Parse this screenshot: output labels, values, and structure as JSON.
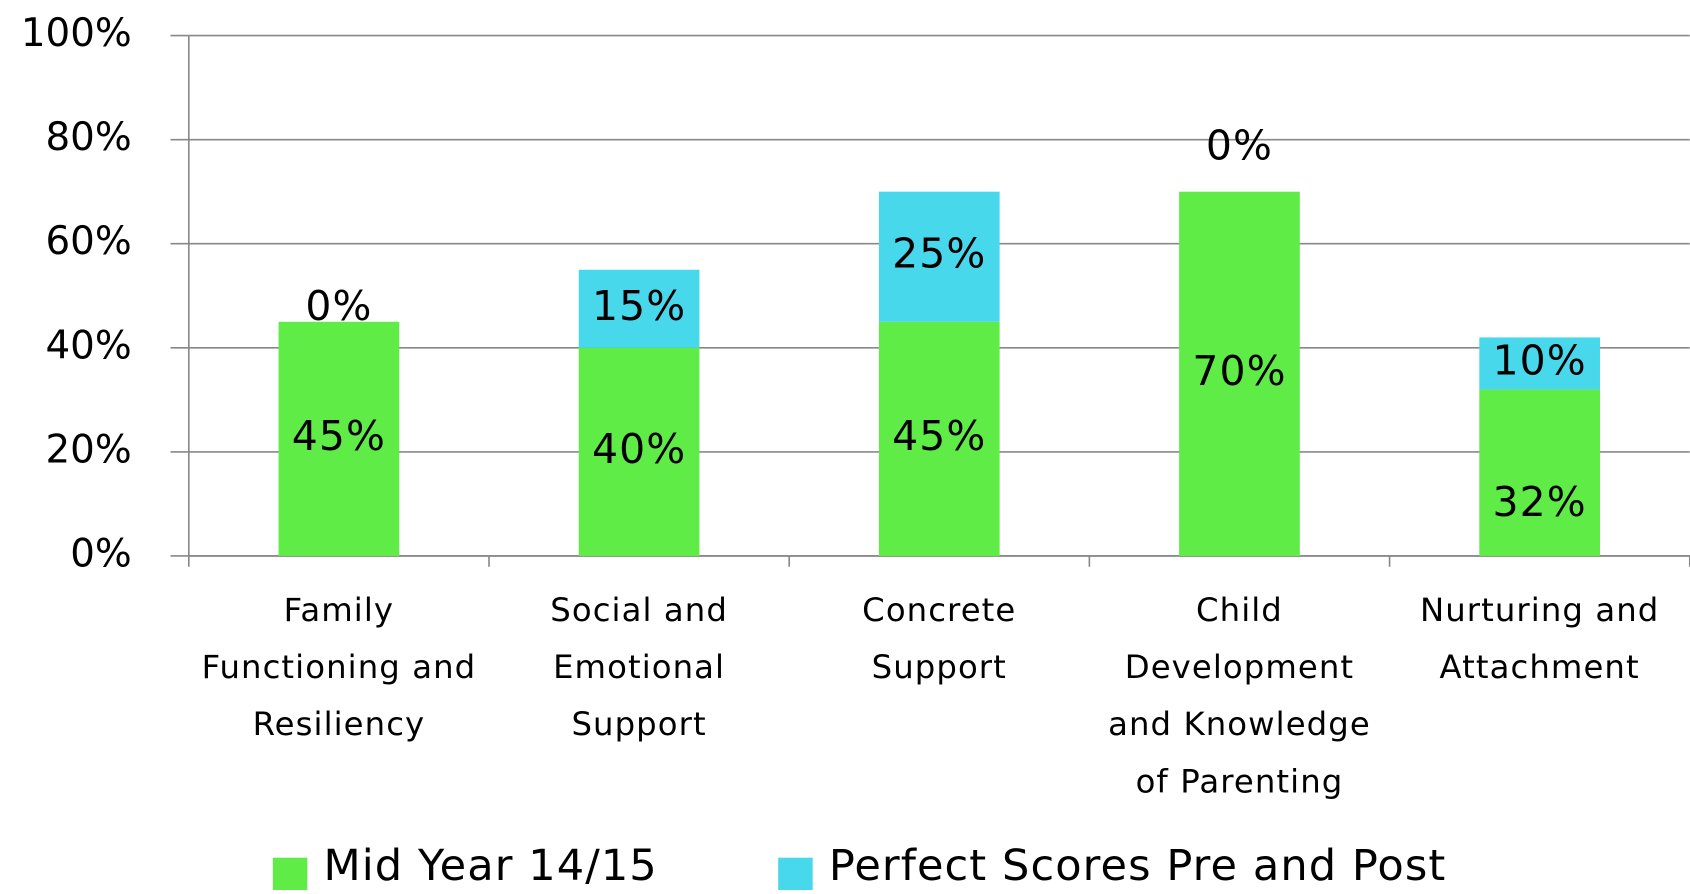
{
  "chart_data": {
    "type": "stacked_bar",
    "categories": [
      "Family Functioning and Resiliency",
      "Social and Emotional Support",
      "Concrete Support",
      "Child Development and Knowledge of Parenting",
      "Nurturing and Attachment"
    ],
    "series": [
      {
        "name": "Mid Year 14/15",
        "color": "#5fec47",
        "values": [
          45,
          40,
          45,
          70,
          32
        ],
        "value_labels": [
          "45%",
          "40%",
          "45%",
          "70%",
          "32%"
        ]
      },
      {
        "name": "Perfect Scores Pre and Post",
        "color": "#48d8ec",
        "values": [
          0,
          15,
          25,
          0,
          10
        ],
        "value_labels": [
          "0%",
          "15%",
          "25%",
          "0%",
          "10%"
        ]
      }
    ],
    "ylim": [
      0,
      100
    ],
    "yticks": [
      {
        "value": 0,
        "label": "0%"
      },
      {
        "value": 20,
        "label": "20%"
      },
      {
        "value": 40,
        "label": "40%"
      },
      {
        "value": 60,
        "label": "60%"
      },
      {
        "value": 80,
        "label": "80%"
      },
      {
        "value": 100,
        "label": "100%"
      }
    ],
    "grid": true,
    "legend": "bottom"
  }
}
